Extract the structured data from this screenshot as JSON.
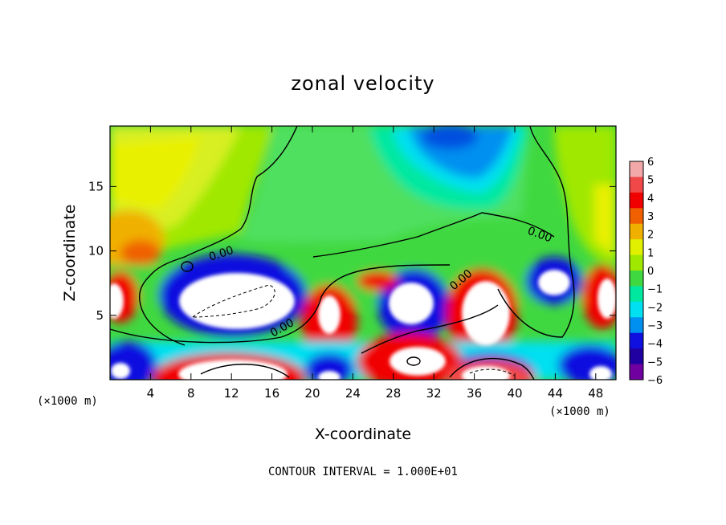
{
  "chart_data": {
    "type": "heatmap",
    "title": "zonal velocity",
    "xlabel": "X-coordinate",
    "ylabel": "Z-coordinate",
    "x_unit_label": "(×1000 m)",
    "y_unit_label": "(×1000 m)",
    "xlim": [
      0,
      50
    ],
    "ylim": [
      0,
      19.7
    ],
    "x_ticks": [
      4,
      8,
      12,
      16,
      20,
      24,
      28,
      32,
      36,
      40,
      44,
      48
    ],
    "y_ticks": [
      5,
      10,
      15
    ],
    "colorbar": {
      "ticks": [
        6,
        5,
        4,
        3,
        2,
        1,
        0,
        -1,
        -2,
        -3,
        -4,
        -5,
        -6
      ],
      "colors": [
        "#f2a8a8",
        "#f04848",
        "#f00000",
        "#f06000",
        "#f0b000",
        "#e0f000",
        "#a0e800",
        "#40d840",
        "#00e8a0",
        "#00e0f0",
        "#0090f0",
        "#1010e0",
        "#2000a0",
        "#7000a0"
      ]
    },
    "contour_labels": [
      "0.00",
      "0.00",
      "0.00",
      "0.00"
    ],
    "contour_interval": "CONTOUR INTERVAL = 1.000E+01"
  }
}
